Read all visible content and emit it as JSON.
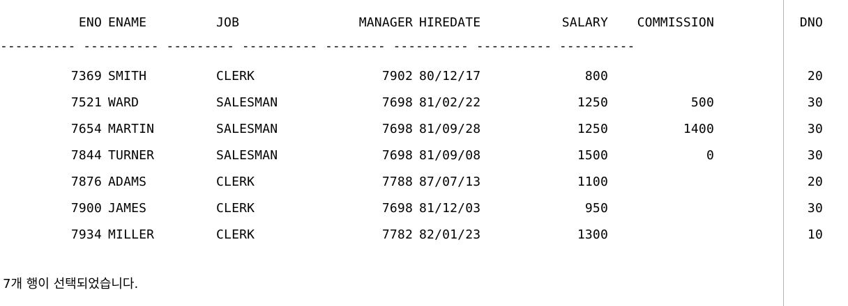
{
  "columns": [
    {
      "key": "eno",
      "label": "ENO",
      "align": "right"
    },
    {
      "key": "ename",
      "label": "ENAME",
      "align": "left"
    },
    {
      "key": "job",
      "label": "JOB",
      "align": "left"
    },
    {
      "key": "manager",
      "label": "MANAGER",
      "align": "right"
    },
    {
      "key": "hiredate",
      "label": "HIREDATE",
      "align": "left"
    },
    {
      "key": "salary",
      "label": "SALARY",
      "align": "right"
    },
    {
      "key": "commission",
      "label": "COMMISSION",
      "align": "right"
    },
    {
      "key": "dno",
      "label": "DNO",
      "align": "right"
    }
  ],
  "rows": [
    {
      "eno": "7369",
      "ename": "SMITH",
      "job": "CLERK",
      "manager": "7902",
      "hiredate": "80/12/17",
      "salary": "800",
      "commission": "",
      "dno": "20"
    },
    {
      "eno": "7521",
      "ename": "WARD",
      "job": "SALESMAN",
      "manager": "7698",
      "hiredate": "81/02/22",
      "salary": "1250",
      "commission": "500",
      "dno": "30"
    },
    {
      "eno": "7654",
      "ename": "MARTIN",
      "job": "SALESMAN",
      "manager": "7698",
      "hiredate": "81/09/28",
      "salary": "1250",
      "commission": "1400",
      "dno": "30"
    },
    {
      "eno": "7844",
      "ename": "TURNER",
      "job": "SALESMAN",
      "manager": "7698",
      "hiredate": "81/09/08",
      "salary": "1500",
      "commission": "0",
      "dno": "30"
    },
    {
      "eno": "7876",
      "ename": "ADAMS",
      "job": "CLERK",
      "manager": "7788",
      "hiredate": "87/07/13",
      "salary": "1100",
      "commission": "",
      "dno": "20"
    },
    {
      "eno": "7900",
      "ename": "JAMES",
      "job": "CLERK",
      "manager": "7698",
      "hiredate": "81/12/03",
      "salary": "950",
      "commission": "",
      "dno": "30"
    },
    {
      "eno": "7934",
      "ename": "MILLER",
      "job": "CLERK",
      "manager": "7782",
      "hiredate": "82/01/23",
      "salary": "1300",
      "commission": "",
      "dno": "10"
    }
  ],
  "separator": "---------- ---------- --------- ---------- -------- ---------- ---------- ----------",
  "status_message": "7개 행이 선택되었습니다.",
  "colors": {
    "background": "#ffffff",
    "text": "#000000",
    "divider": "#b4b4b4"
  }
}
